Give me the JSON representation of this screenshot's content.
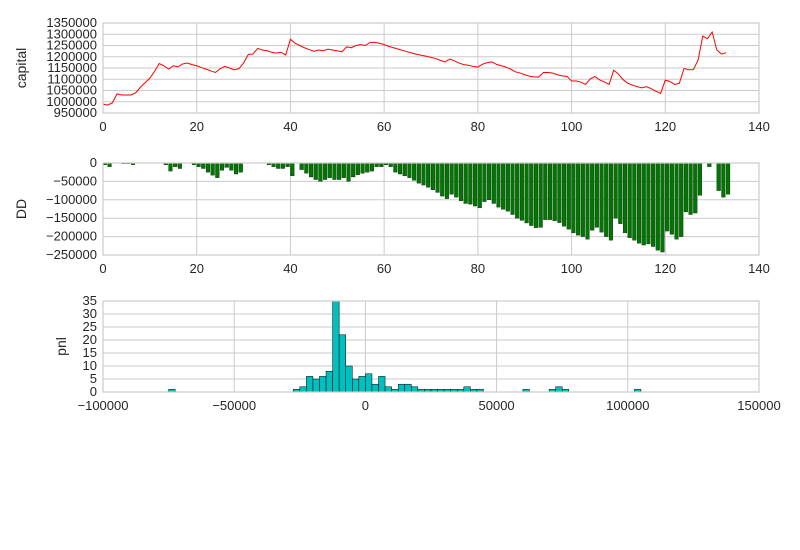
{
  "chart_data": [
    {
      "type": "line",
      "ylabel": "capital",
      "xlim": [
        0,
        140
      ],
      "ylim": [
        950000,
        1350000
      ],
      "xticks": [
        "0",
        "20",
        "40",
        "60",
        "80",
        "100",
        "120",
        "140"
      ],
      "yticks": [
        "950000",
        "1000000",
        "1050000",
        "1100000",
        "1150000",
        "1200000",
        "1250000",
        "1300000",
        "1350000"
      ],
      "grid": true,
      "color": "#ff0000",
      "series": [
        {
          "x": [
            0,
            1,
            2,
            3,
            4,
            5,
            6,
            7,
            8,
            9,
            10,
            11,
            12,
            13,
            14,
            15,
            16,
            17,
            18,
            19,
            20,
            21,
            22,
            23,
            24,
            25,
            26,
            27,
            28,
            29,
            30,
            31,
            32,
            33,
            34,
            35,
            36,
            37,
            38,
            39,
            40,
            41,
            42,
            43,
            44,
            45,
            46,
            47,
            48,
            49,
            50,
            51,
            52,
            53,
            54,
            55,
            56,
            57,
            58,
            59,
            60,
            61,
            62,
            63,
            64,
            65,
            66,
            67,
            68,
            69,
            70,
            71,
            72,
            73,
            74,
            75,
            76,
            77,
            78,
            79,
            80,
            81,
            82,
            83,
            84,
            85,
            86,
            87,
            88,
            89,
            90,
            91,
            92,
            93,
            94,
            95,
            96,
            97,
            98,
            99,
            100,
            101,
            102,
            103,
            104,
            105,
            106,
            107,
            108,
            109,
            110,
            111,
            112,
            113,
            114,
            115,
            116,
            117,
            118,
            119,
            120,
            121,
            122,
            123,
            124,
            125,
            126,
            127,
            128,
            129,
            130,
            131,
            132,
            133
          ],
          "y": [
            990000,
            985000,
            995000,
            1035000,
            1030000,
            1030000,
            1030000,
            1040000,
            1065000,
            1085000,
            1105000,
            1135000,
            1170000,
            1160000,
            1145000,
            1160000,
            1155000,
            1168000,
            1172000,
            1165000,
            1160000,
            1152000,
            1145000,
            1137000,
            1130000,
            1147000,
            1157000,
            1150000,
            1142000,
            1147000,
            1172000,
            1210000,
            1212000,
            1237000,
            1230000,
            1227000,
            1220000,
            1216000,
            1220000,
            1208000,
            1278000,
            1260000,
            1250000,
            1240000,
            1232000,
            1224000,
            1230000,
            1226000,
            1234000,
            1230000,
            1226000,
            1222000,
            1244000,
            1240000,
            1250000,
            1254000,
            1250000,
            1264000,
            1264000,
            1260000,
            1254000,
            1246000,
            1240000,
            1234000,
            1228000,
            1222000,
            1216000,
            1211000,
            1206000,
            1202000,
            1197000,
            1192000,
            1184000,
            1177000,
            1190000,
            1182000,
            1172000,
            1165000,
            1162000,
            1157000,
            1154000,
            1167000,
            1174000,
            1177000,
            1166000,
            1160000,
            1154000,
            1145000,
            1133000,
            1128000,
            1120000,
            1114000,
            1110000,
            1110000,
            1130000,
            1130000,
            1127000,
            1120000,
            1115000,
            1113000,
            1092000,
            1092000,
            1087000,
            1077000,
            1102000,
            1112000,
            1097000,
            1088000,
            1077000,
            1140000,
            1123000,
            1098000,
            1082000,
            1074000,
            1067000,
            1062000,
            1067000,
            1058000,
            1047000,
            1037000,
            1096000,
            1090000,
            1077000,
            1082000,
            1148000,
            1142000,
            1143000,
            1185000,
            1292000,
            1280000,
            1310000,
            1230000,
            1212000,
            1218000
          ]
        }
      ]
    },
    {
      "type": "bar",
      "ylabel": "DD",
      "xlim": [
        0,
        140
      ],
      "ylim": [
        -250000,
        0
      ],
      "xticks": [
        "0",
        "20",
        "40",
        "60",
        "80",
        "100",
        "120",
        "140"
      ],
      "yticks": [
        "0",
        "−50000",
        "−100000",
        "−150000",
        "−200000",
        "−250000"
      ],
      "grid": true,
      "color": "#007700",
      "series": [
        {
          "x": [
            0,
            1,
            2,
            3,
            4,
            5,
            6,
            7,
            8,
            9,
            10,
            11,
            12,
            13,
            14,
            15,
            16,
            17,
            18,
            19,
            20,
            21,
            22,
            23,
            24,
            25,
            26,
            27,
            28,
            29,
            30,
            31,
            32,
            33,
            34,
            35,
            36,
            37,
            38,
            39,
            40,
            41,
            42,
            43,
            44,
            45,
            46,
            47,
            48,
            49,
            50,
            51,
            52,
            53,
            54,
            55,
            56,
            57,
            58,
            59,
            60,
            61,
            62,
            63,
            64,
            65,
            66,
            67,
            68,
            69,
            70,
            71,
            72,
            73,
            74,
            75,
            76,
            77,
            78,
            79,
            80,
            81,
            82,
            83,
            84,
            85,
            86,
            87,
            88,
            89,
            90,
            91,
            92,
            93,
            94,
            95,
            96,
            97,
            98,
            99,
            100,
            101,
            102,
            103,
            104,
            105,
            106,
            107,
            108,
            109,
            110,
            111,
            112,
            113,
            114,
            115,
            116,
            117,
            118,
            119,
            120,
            121,
            122,
            123,
            124,
            125,
            126,
            127,
            128,
            129,
            130,
            131,
            132,
            133
          ],
          "y": [
            -5000,
            -10000,
            0,
            0,
            -2000,
            -2000,
            -5000,
            0,
            0,
            0,
            0,
            0,
            0,
            -5000,
            -22000,
            -10000,
            -15000,
            0,
            0,
            -5000,
            -10000,
            -15000,
            -25000,
            -33000,
            -40000,
            -20000,
            -12000,
            -20000,
            -30000,
            -25000,
            0,
            0,
            0,
            0,
            0,
            -5000,
            -10000,
            -15000,
            -15000,
            -10000,
            -35000,
            0,
            -18000,
            -28000,
            -38000,
            -45000,
            -50000,
            -45000,
            -40000,
            -45000,
            -45000,
            -40000,
            -50000,
            -38000,
            -32000,
            -28000,
            -25000,
            -22000,
            -10000,
            -10000,
            -5000,
            -10000,
            -25000,
            -30000,
            -35000,
            -40000,
            -47000,
            -55000,
            -60000,
            -66000,
            -73000,
            -80000,
            -90000,
            -97000,
            -85000,
            -93000,
            -103000,
            -110000,
            -112000,
            -117000,
            -122000,
            -105000,
            -100000,
            -110000,
            -120000,
            -126000,
            -131000,
            -140000,
            -150000,
            -156000,
            -163000,
            -170000,
            -176000,
            -175000,
            -154000,
            -154000,
            -157000,
            -162000,
            -172000,
            -180000,
            -190000,
            -196000,
            -200000,
            -207000,
            -183000,
            -175000,
            -188000,
            -200000,
            -210000,
            -150000,
            -165000,
            -190000,
            -203000,
            -210000,
            -218000,
            -223000,
            -220000,
            -227000,
            -237000,
            -242000,
            -185000,
            -194000,
            -207000,
            -200000,
            -133000,
            -140000,
            -136000,
            -88000,
            0,
            -10000,
            0,
            -75000,
            -93000,
            -85000
          ]
        }
      ]
    },
    {
      "type": "bar",
      "ylabel": "pnl",
      "xlim": [
        -100000,
        150000
      ],
      "ylim": [
        0,
        35
      ],
      "xticks": [
        "−100000",
        "−50000",
        "0",
        "50000",
        "100000",
        "150000"
      ],
      "yticks": [
        "0",
        "5",
        "10",
        "15",
        "20",
        "25",
        "30",
        "35"
      ],
      "grid": true,
      "color": "#00bfbf",
      "series": [
        {
          "name": "histogram",
          "bin_start": [
            -75000,
            -27500,
            -25000,
            -22500,
            -20000,
            -17500,
            -15000,
            -12500,
            -10000,
            -7500,
            -5000,
            -2500,
            0,
            2500,
            5000,
            7500,
            10000,
            12500,
            15000,
            17500,
            20000,
            22500,
            25000,
            27500,
            30000,
            32500,
            35000,
            37500,
            40000,
            42500,
            60000,
            70000,
            72500,
            75000,
            102500
          ],
          "bin_width": 2500,
          "counts": [
            1,
            1,
            2,
            6,
            5,
            6,
            8,
            35,
            22,
            10,
            5,
            6,
            7,
            3,
            6,
            2,
            1,
            3,
            3,
            2,
            1,
            1,
            1,
            1,
            1,
            1,
            1,
            2,
            1,
            1,
            1,
            1,
            2,
            1,
            1
          ]
        }
      ]
    }
  ]
}
